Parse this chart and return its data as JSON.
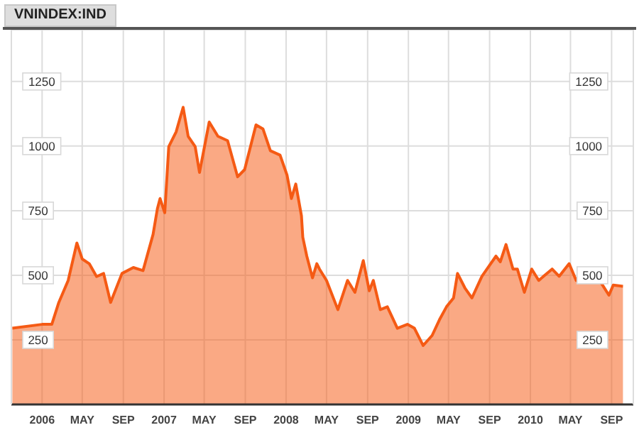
{
  "chart_data": {
    "type": "area",
    "title": "VNINDEX:IND",
    "x": [
      "2005-10-04",
      "2006-01-01",
      "2006-01-30",
      "2006-02-20",
      "2006-03-20",
      "2006-04-15",
      "2006-05-01",
      "2006-05-22",
      "2006-06-13",
      "2006-07-04",
      "2006-07-25",
      "2006-08-28",
      "2006-10-01",
      "2006-10-30",
      "2006-11-29",
      "2006-12-12",
      "2006-12-20",
      "2007-01-03",
      "2007-01-15",
      "2007-02-06",
      "2007-02-27",
      "2007-03-14",
      "2007-04-04",
      "2007-04-17",
      "2007-05-16",
      "2007-06-11",
      "2007-07-10",
      "2007-08-09",
      "2007-08-30",
      "2007-10-03",
      "2007-10-24",
      "2007-11-15",
      "2007-12-14",
      "2008-01-04",
      "2008-01-17",
      "2008-01-30",
      "2008-02-16",
      "2008-02-20",
      "2008-03-03",
      "2008-03-20",
      "2008-04-02",
      "2008-04-10",
      "2008-05-01",
      "2008-06-04",
      "2008-07-03",
      "2008-07-25",
      "2008-08-19",
      "2008-09-06",
      "2008-09-18",
      "2008-10-09",
      "2008-10-30",
      "2008-11-29",
      "2008-12-29",
      "2009-01-19",
      "2009-02-14",
      "2009-03-13",
      "2009-04-04",
      "2009-04-25",
      "2009-05-16",
      "2009-05-28",
      "2009-06-19",
      "2009-07-10",
      "2009-08-09",
      "2009-08-30",
      "2009-09-20",
      "2009-10-03",
      "2009-10-20",
      "2009-11-10",
      "2009-11-23",
      "2009-12-14",
      "2010-01-05",
      "2010-01-26",
      "2010-03-07",
      "2010-03-28",
      "2010-04-27",
      "2010-05-18",
      "2010-06-21",
      "2010-08-02",
      "2010-08-24",
      "2010-09-06",
      "2010-10-05"
    ],
    "series": [
      {
        "color": "#f55a14",
        "values": [
          295,
          310,
          310,
          395,
          480,
          625,
          563,
          545,
          495,
          507,
          395,
          507,
          530,
          518,
          658,
          758,
          797,
          742,
          998,
          1055,
          1150,
          1038,
          998,
          898,
          1093,
          1038,
          1021,
          881,
          909,
          1082,
          1066,
          982,
          965,
          887,
          797,
          853,
          730,
          647,
          574,
          490,
          545,
          524,
          480,
          367,
          480,
          434,
          557,
          440,
          480,
          367,
          378,
          295,
          310,
          295,
          228,
          267,
          328,
          378,
          412,
          507,
          451,
          412,
          496,
          535,
          574,
          552,
          619,
          524,
          524,
          434,
          524,
          480,
          524,
          496,
          545,
          480,
          507,
          468,
          423,
          462,
          457
        ]
      }
    ],
    "xlim": [
      "2005-10-01",
      "2010-11-05"
    ],
    "xticks": [
      {
        "value": "2006-01-01",
        "label": "2006"
      },
      {
        "value": "2006-05-01",
        "label": "MAY"
      },
      {
        "value": "2006-09-01",
        "label": "SEP"
      },
      {
        "value": "2007-01-01",
        "label": "2007"
      },
      {
        "value": "2007-05-01",
        "label": "MAY"
      },
      {
        "value": "2007-09-01",
        "label": "SEP"
      },
      {
        "value": "2008-01-01",
        "label": "2008"
      },
      {
        "value": "2008-05-01",
        "label": "MAY"
      },
      {
        "value": "2008-09-01",
        "label": "SEP"
      },
      {
        "value": "2009-01-01",
        "label": "2009"
      },
      {
        "value": "2009-05-01",
        "label": "MAY"
      },
      {
        "value": "2009-09-01",
        "label": "SEP"
      },
      {
        "value": "2010-01-01",
        "label": "2010"
      },
      {
        "value": "2010-05-01",
        "label": "MAY"
      },
      {
        "value": "2010-09-01",
        "label": "SEP"
      }
    ],
    "ylim": [
      0,
      1450
    ],
    "yticks": [
      250,
      500,
      750,
      1000,
      1250
    ],
    "y2lim": [
      0,
      1450
    ],
    "y2ticks": [
      250,
      500,
      750,
      1000,
      1250
    ],
    "grid": true
  }
}
